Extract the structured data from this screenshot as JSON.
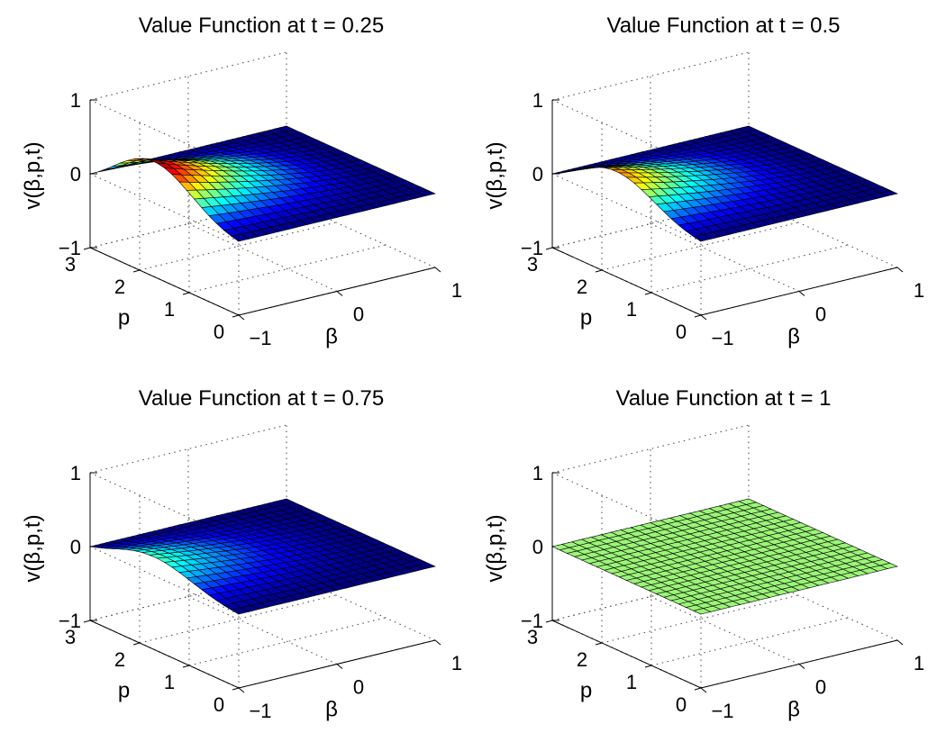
{
  "figure": {
    "colormap": "jet",
    "mesh_edge_color": "#000000"
  },
  "chart_data": [
    {
      "type": "surface",
      "title": "Value Function at t = 0.25",
      "t": 0.25,
      "xlabel": "β",
      "ylabel": "p",
      "zlabel": "v(β,p,t)",
      "xlim": [
        -1,
        1
      ],
      "ylim": [
        0,
        3
      ],
      "zlim": [
        -1,
        1
      ],
      "xticks": [
        "−1",
        "0",
        "1"
      ],
      "yticks": [
        "0",
        "1",
        "2",
        "3"
      ],
      "zticks": [
        "−1",
        "0",
        "1"
      ],
      "grid": true,
      "peak_value": 0.55,
      "peak_location": {
        "beta": -1,
        "p": 2.1
      }
    },
    {
      "type": "surface",
      "title": "Value Function at t = 0.5",
      "t": 0.5,
      "xlabel": "β",
      "ylabel": "p",
      "zlabel": "v(β,p,t)",
      "xlim": [
        -1,
        1
      ],
      "ylim": [
        0,
        3
      ],
      "zlim": [
        -1,
        1
      ],
      "xticks": [
        "−1",
        "0",
        "1"
      ],
      "yticks": [
        "0",
        "1",
        "2",
        "3"
      ],
      "zticks": [
        "−1",
        "0",
        "1"
      ],
      "grid": true,
      "peak_value": 0.42,
      "peak_location": {
        "beta": -1,
        "p": 2.1
      }
    },
    {
      "type": "surface",
      "title": "Value Function at t = 0.75",
      "t": 0.75,
      "xlabel": "β",
      "ylabel": "p",
      "zlabel": "v(β,p,t)",
      "xlim": [
        -1,
        1
      ],
      "ylim": [
        0,
        3
      ],
      "zlim": [
        -1,
        1
      ],
      "xticks": [
        "−1",
        "0",
        "1"
      ],
      "yticks": [
        "0",
        "1",
        "2",
        "3"
      ],
      "zticks": [
        "−1",
        "0",
        "1"
      ],
      "grid": true,
      "peak_value": 0.25,
      "peak_location": {
        "beta": -1,
        "p": 2.1
      }
    },
    {
      "type": "surface",
      "title": "Value Function at t = 1",
      "t": 1,
      "xlabel": "β",
      "ylabel": "p",
      "zlabel": "v(β,p,t)",
      "xlim": [
        -1,
        1
      ],
      "ylim": [
        0,
        3
      ],
      "zlim": [
        -1,
        1
      ],
      "xticks": [
        "−1",
        "0",
        "1"
      ],
      "yticks": [
        "0",
        "1",
        "2",
        "3"
      ],
      "zticks": [
        "−1",
        "0",
        "1"
      ],
      "grid": true,
      "peak_value": 0,
      "peak_location": {
        "beta": -1,
        "p": 2.1
      }
    }
  ]
}
